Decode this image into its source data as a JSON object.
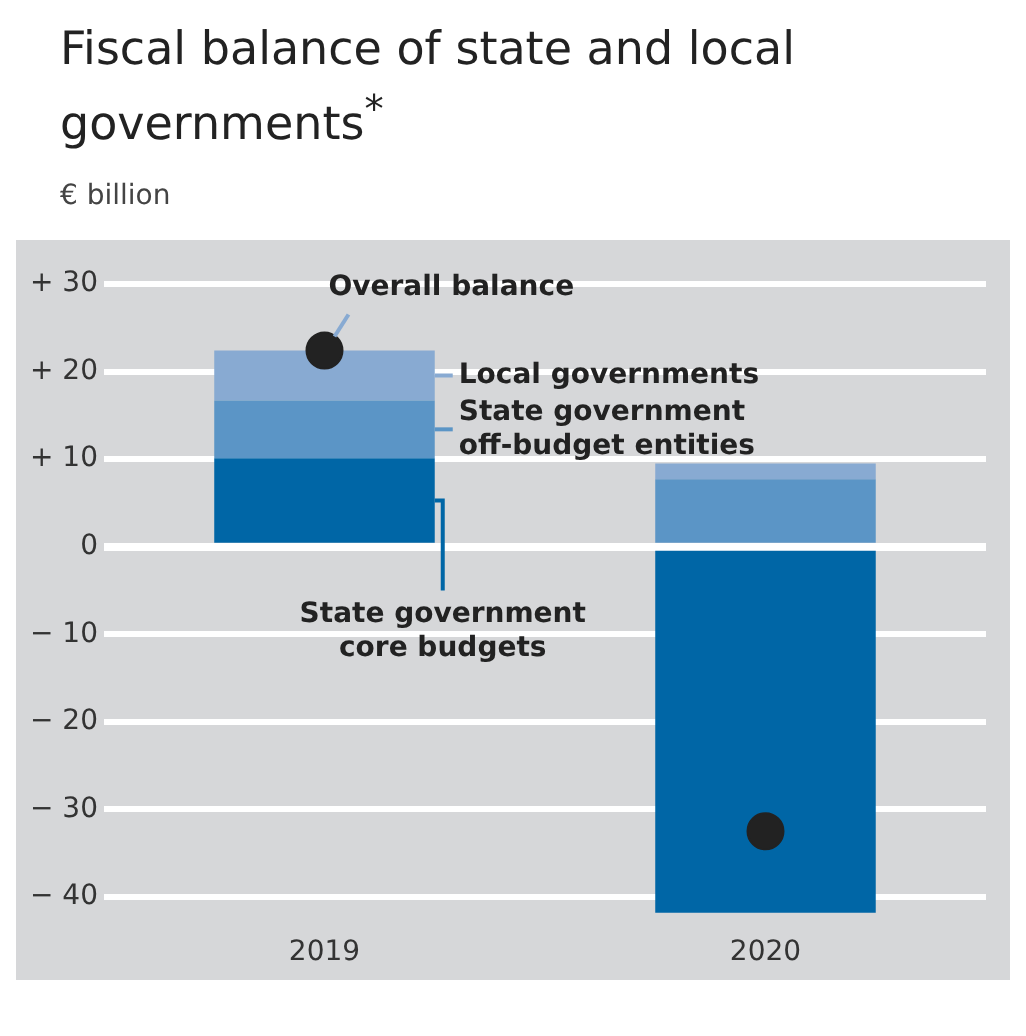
{
  "chart_data": {
    "type": "bar",
    "title": "Fiscal balance of state and local governments$^{*}$",
    "subtitle": "€ billion",
    "categories": [
      "2019",
      "2020"
    ],
    "stacked": true,
    "series": [
      {
        "name": "State government core budgets",
        "color": "#0066a6",
        "values": [
          10.1,
          -41.8
        ]
      },
      {
        "name": "State government off-budget entities",
        "color": "#5b95c6",
        "values": [
          6.6,
          7.7
        ]
      },
      {
        "name": "Local governments",
        "color": "#88aad2",
        "values": [
          5.7,
          1.8
        ]
      },
      {
        "name": "Overall balance",
        "type": "scatter",
        "color": "#222222",
        "values": [
          22.4,
          -32.5
        ],
        "marker": "circle"
      }
    ],
    "ylim": [
      -42,
      30
    ],
    "yticks": [
      {
        "value": -40,
        "label": "− 40"
      },
      {
        "value": -30,
        "label": "− 30"
      },
      {
        "value": -20,
        "label": "− 20"
      },
      {
        "value": -10,
        "label": "− 10"
      },
      0,
      {
        "value": 10,
        "label": "+ 10"
      },
      {
        "value": 20,
        "label": "+ 20"
      },
      {
        "value": 30,
        "label": "+ 30"
      }
    ],
    "grid": "y",
    "legend": "right"
  }
}
